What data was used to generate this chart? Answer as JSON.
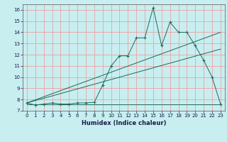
{
  "xlabel": "Humidex (Indice chaleur)",
  "ylabel": "",
  "bg_color": "#c8eef0",
  "grid_color": "#f0a0a0",
  "line_color": "#1a6b5a",
  "xlim": [
    -0.5,
    23.5
  ],
  "ylim": [
    7,
    16.5
  ],
  "xticks": [
    0,
    1,
    2,
    3,
    4,
    5,
    6,
    7,
    8,
    9,
    10,
    11,
    12,
    13,
    14,
    15,
    16,
    17,
    18,
    19,
    20,
    21,
    22,
    23
  ],
  "yticks": [
    7,
    8,
    9,
    10,
    11,
    12,
    13,
    14,
    15,
    16
  ],
  "line1_x": [
    0,
    1,
    2,
    3,
    4,
    5,
    6,
    7,
    8,
    9,
    10,
    11,
    12,
    13,
    14,
    15,
    16,
    17,
    18,
    19,
    20,
    21,
    22,
    23
  ],
  "line1_y": [
    7.7,
    7.5,
    7.6,
    7.7,
    7.6,
    7.6,
    7.7,
    7.7,
    7.75,
    9.3,
    11.0,
    11.9,
    11.9,
    13.5,
    13.5,
    16.2,
    12.8,
    14.9,
    14.0,
    14.0,
    12.8,
    11.5,
    10.0,
    7.6
  ],
  "line2_x": [
    0,
    23
  ],
  "line2_y": [
    7.7,
    12.5
  ],
  "line3_x": [
    0,
    23
  ],
  "line3_y": [
    7.7,
    14.0
  ],
  "line4_x": [
    0,
    23
  ],
  "line4_y": [
    7.6,
    7.6
  ],
  "xlabel_fontsize": 6.0,
  "tick_fontsize": 5.0
}
